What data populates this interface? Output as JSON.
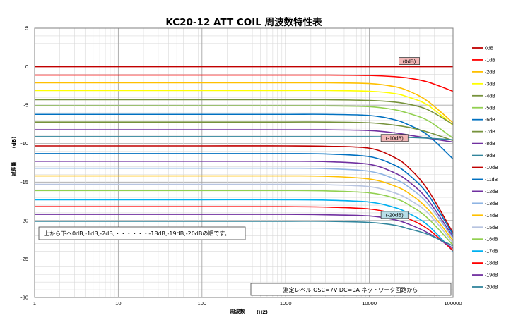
{
  "chart_data": {
    "type": "line",
    "title": "KC20-12 ATT COIL 周波数特性表",
    "xlabel": "周波数",
    "xunit": "(HZ)",
    "ylabel": "減衰量",
    "yunit": "(dB)",
    "xscale": "log",
    "xlim": [
      1,
      100000
    ],
    "ylim": [
      -30,
      5
    ],
    "grid": true,
    "legend_position": "right",
    "x_ticks": [
      "1",
      "10",
      "100",
      "1000",
      "10000",
      "100000"
    ],
    "y_ticks": [
      "5",
      "0",
      "-5",
      "-10",
      "-15",
      "-20",
      "-25",
      "-30"
    ],
    "x": [
      1,
      10,
      100,
      1000,
      3000,
      10000,
      20000,
      30000,
      50000,
      100000
    ],
    "series": [
      {
        "name": "0dB",
        "color": "#C00000",
        "values": [
          0,
          0,
          0,
          0,
          0,
          0,
          0,
          0,
          0,
          0
        ]
      },
      {
        "name": "-1dB",
        "color": "#FF0000",
        "values": [
          -1.1,
          -1.1,
          -1.1,
          -1.1,
          -1.1,
          -1.15,
          -1.3,
          -1.5,
          -2.0,
          -3.2
        ]
      },
      {
        "name": "-2dB",
        "color": "#FFC000",
        "values": [
          -2.1,
          -2.1,
          -2.1,
          -2.1,
          -2.1,
          -2.2,
          -2.6,
          -3.2,
          -4.5,
          -7.3
        ]
      },
      {
        "name": "-3dB",
        "color": "#FFFF00",
        "values": [
          -3.1,
          -3.1,
          -3.1,
          -3.1,
          -3.1,
          -3.2,
          -3.5,
          -4.0,
          -5.0,
          -7.6
        ]
      },
      {
        "name": "-4dB",
        "color": "#77933C",
        "values": [
          -4.3,
          -4.3,
          -4.3,
          -4.3,
          -4.3,
          -4.4,
          -4.6,
          -4.9,
          -5.6,
          -7.5
        ]
      },
      {
        "name": "-5dB",
        "color": "#92D050",
        "values": [
          -5.1,
          -5.1,
          -5.1,
          -5.1,
          -5.1,
          -5.2,
          -5.6,
          -6.1,
          -7.0,
          -9.3
        ]
      },
      {
        "name": "-6dB",
        "color": "#0070C0",
        "values": [
          -6.2,
          -6.2,
          -6.2,
          -6.2,
          -6.2,
          -6.35,
          -6.9,
          -7.6,
          -8.9,
          -12.0
        ]
      },
      {
        "name": "-7dB",
        "color": "#76923C",
        "values": [
          -7.2,
          -7.2,
          -7.2,
          -7.2,
          -7.2,
          -7.3,
          -7.6,
          -7.9,
          -8.5,
          -9.6
        ]
      },
      {
        "name": "-8dB",
        "color": "#7030A0",
        "values": [
          -8.2,
          -8.2,
          -8.2,
          -8.2,
          -8.2,
          -8.3,
          -8.6,
          -8.9,
          -9.3,
          -9.8
        ]
      },
      {
        "name": "-9dB",
        "color": "#31859C",
        "values": [
          -9.1,
          -9.1,
          -9.1,
          -9.1,
          -9.1,
          -9.1,
          -9.15,
          -9.2,
          -9.3,
          -9.5
        ]
      },
      {
        "name": "-10dB",
        "color": "#C00000",
        "values": [
          -10.3,
          -10.3,
          -10.3,
          -10.3,
          -10.35,
          -10.6,
          -11.8,
          -13.2,
          -16.0,
          -21.6
        ]
      },
      {
        "name": "-11dB",
        "color": "#0070C0",
        "values": [
          -11.3,
          -11.3,
          -11.3,
          -11.3,
          -11.35,
          -11.7,
          -12.8,
          -14.1,
          -16.6,
          -21.8
        ]
      },
      {
        "name": "-12dB",
        "color": "#7030A0",
        "values": [
          -12.3,
          -12.3,
          -12.3,
          -12.3,
          -12.35,
          -12.7,
          -13.8,
          -15.0,
          -17.3,
          -22.1
        ]
      },
      {
        "name": "-13dB",
        "color": "#8EB4E3",
        "values": [
          -13.2,
          -13.2,
          -13.2,
          -13.2,
          -13.25,
          -13.6,
          -14.6,
          -15.7,
          -17.8,
          -22.3
        ]
      },
      {
        "name": "-14dB",
        "color": "#FFC000",
        "values": [
          -14.2,
          -14.2,
          -14.2,
          -14.2,
          -14.25,
          -14.6,
          -15.5,
          -16.5,
          -18.5,
          -22.6
        ]
      },
      {
        "name": "-15dB",
        "color": "#B7C4E0",
        "values": [
          -15.3,
          -15.3,
          -15.3,
          -15.3,
          -15.35,
          -15.6,
          -16.4,
          -17.3,
          -19.0,
          -22.9
        ]
      },
      {
        "name": "-16dB",
        "color": "#92D050",
        "values": [
          -16.1,
          -16.1,
          -16.1,
          -16.1,
          -16.15,
          -16.4,
          -17.1,
          -18.0,
          -19.7,
          -23.2
        ]
      },
      {
        "name": "-17dB",
        "color": "#00B0F0",
        "values": [
          -17.3,
          -17.3,
          -17.3,
          -17.3,
          -17.35,
          -17.6,
          -18.3,
          -19.1,
          -20.6,
          -24.0
        ]
      },
      {
        "name": "-18dB",
        "color": "#FF0000",
        "values": [
          -18.2,
          -18.2,
          -18.2,
          -18.2,
          -18.25,
          -18.5,
          -19.1,
          -19.8,
          -21.1,
          -23.9
        ]
      },
      {
        "name": "-19dB",
        "color": "#7030A0",
        "values": [
          -19.2,
          -19.2,
          -19.2,
          -19.2,
          -19.25,
          -19.4,
          -19.9,
          -20.5,
          -21.6,
          -23.6
        ]
      },
      {
        "name": "-20dB",
        "color": "#31859C",
        "values": [
          -20.1,
          -20.1,
          -20.1,
          -20.1,
          -20.1,
          -20.25,
          -20.6,
          -21.1,
          -21.8,
          -23.3
        ]
      }
    ],
    "annotations": [
      {
        "text": "(0dB)",
        "x": 30000,
        "y": 0,
        "fill": "#F2B8B8"
      },
      {
        "text": "(-10dB)",
        "x": 20000,
        "y": -10,
        "fill": "#F2B8B8"
      },
      {
        "text": "(-20dB)",
        "x": 20000,
        "y": -20,
        "fill": "#B7DEE8"
      }
    ],
    "notes": [
      "上から下へ0dB,-1dB,-2dB,・・・・・・-18dB,-19dB,-20dBの順です。",
      "測定レベル OSC=7V DC=0A ネットワーク回路から"
    ]
  }
}
